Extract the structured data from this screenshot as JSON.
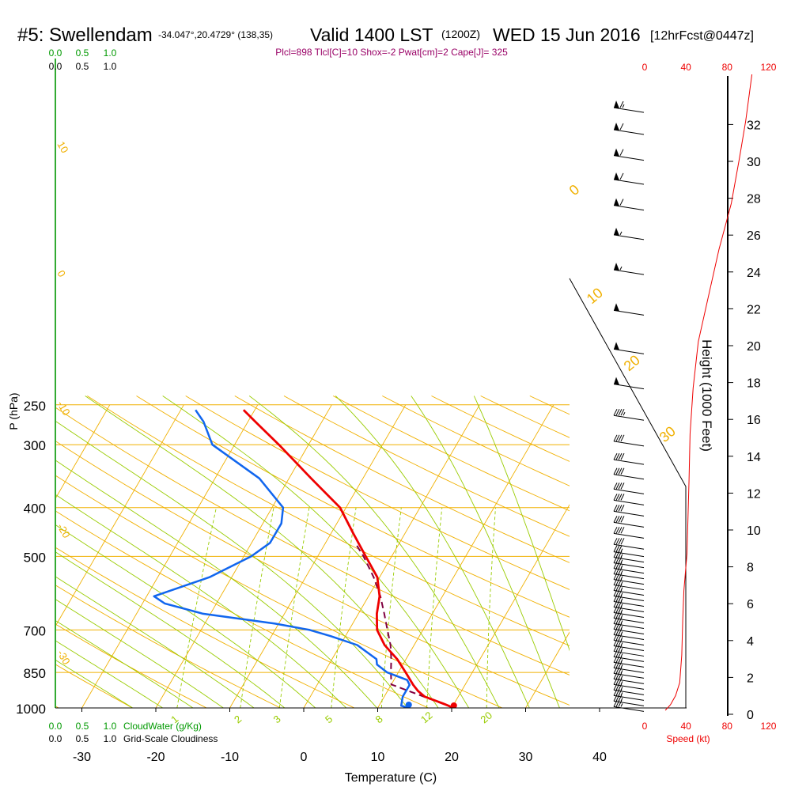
{
  "header": {
    "station": "#5: Swellendam",
    "coords": "-34.047°,20.4729° (138,35)",
    "valid": "Valid 1400 LST",
    "zulu": "(1200Z)",
    "date": "WED 15 Jun 2016",
    "fcst": "[12hrFcst@0447z]",
    "indices": "Plcl=898 Tlcl[C]=10 Shox=-2 Pwat[cm]=2 Cape[J]= 325"
  },
  "colors": {
    "isotherm": "#f0b000",
    "dry_adiabat": "#f0b000",
    "moist_adiabat": "#99cc00",
    "mixing_ratio": "#99cc00",
    "temperature": "#ee0000",
    "dewpoint": "#1166ee",
    "parcel": "#800040",
    "speed": "#ee0000",
    "cloud": "#009900",
    "indices": "#990066"
  },
  "chart_data": {
    "type": "skew-t log-p sounding",
    "xlabel": "Temperature (C)",
    "ylabel": "P (hPa)",
    "y2label": "Height (1000 Feet)",
    "x_ticks": [
      "-30",
      "-20",
      "-10",
      "0",
      "10",
      "20",
      "30",
      "40"
    ],
    "p_ticks": [
      "250",
      "300",
      "400",
      "500",
      "700",
      "850",
      "1000"
    ],
    "height_ticks": [
      "0",
      "2",
      "4",
      "6",
      "8",
      "10",
      "12",
      "14",
      "16",
      "18",
      "20",
      "22",
      "24",
      "26",
      "28",
      "30",
      "32"
    ],
    "isotherm_labels": [
      "10",
      "0",
      "-10",
      "-20",
      "-30",
      "0",
      "10",
      "20",
      "30"
    ],
    "mixing_ratio_labels": [
      "1",
      "2",
      "3",
      "5",
      "8",
      "12",
      "20"
    ],
    "temperature": [
      [
        1000,
        20.3
      ],
      [
        980,
        18.5
      ],
      [
        950,
        15.5
      ],
      [
        925,
        14.1
      ],
      [
        900,
        13.0
      ],
      [
        850,
        11.0
      ],
      [
        800,
        8.8
      ],
      [
        750,
        6.0
      ],
      [
        700,
        3.8
      ],
      [
        650,
        2.5
      ],
      [
        600,
        1.5
      ],
      [
        550,
        -0.3
      ],
      [
        500,
        -3.5
      ],
      [
        450,
        -7.0
      ],
      [
        400,
        -10.8
      ],
      [
        350,
        -17.0
      ],
      [
        300,
        -24.0
      ],
      [
        270,
        -29.0
      ],
      [
        256,
        -31.5
      ]
    ],
    "dewpoint": [
      [
        1000,
        14.2
      ],
      [
        990,
        13.0
      ],
      [
        950,
        12.5
      ],
      [
        900,
        12.5
      ],
      [
        880,
        11.8
      ],
      [
        850,
        8.5
      ],
      [
        820,
        6.5
      ],
      [
        800,
        6.0
      ],
      [
        750,
        2.3
      ],
      [
        720,
        -2.0
      ],
      [
        700,
        -5.3
      ],
      [
        680,
        -10.5
      ],
      [
        650,
        -21.0
      ],
      [
        620,
        -27.0
      ],
      [
        600,
        -29.0
      ],
      [
        550,
        -23.0
      ],
      [
        500,
        -19.0
      ],
      [
        470,
        -17.5
      ],
      [
        430,
        -17.5
      ],
      [
        400,
        -18.5
      ],
      [
        350,
        -24.0
      ],
      [
        300,
        -33.0
      ],
      [
        270,
        -36.0
      ],
      [
        256,
        -38.0
      ]
    ],
    "parcel": [
      [
        1000,
        20.3
      ],
      [
        898,
        10.0
      ],
      [
        850,
        9.0
      ],
      [
        800,
        8.0
      ],
      [
        750,
        6.8
      ],
      [
        700,
        5.2
      ],
      [
        650,
        3.5
      ],
      [
        600,
        1.6
      ],
      [
        550,
        -0.8
      ],
      [
        500,
        -3.8
      ],
      [
        470,
        -6.0
      ]
    ],
    "wind_speed_ticks": [
      "0",
      "40",
      "80",
      "120"
    ],
    "wind_speed_label": "Speed (kt)",
    "wind_speed_profile": [
      [
        0.0,
        20
      ],
      [
        0.3,
        25
      ],
      [
        0.8,
        30
      ],
      [
        1.5,
        34
      ],
      [
        3.0,
        36
      ],
      [
        5.0,
        37
      ],
      [
        6.5,
        38
      ],
      [
        8.5,
        41
      ],
      [
        10.5,
        42
      ],
      [
        12.5,
        43
      ],
      [
        15.0,
        44
      ],
      [
        17.5,
        47
      ],
      [
        20.0,
        52
      ],
      [
        22.5,
        62
      ],
      [
        25.0,
        72
      ],
      [
        27.5,
        84
      ],
      [
        30.0,
        92
      ],
      [
        32.0,
        98
      ],
      [
        34.5,
        104
      ]
    ],
    "wind_barbs_kt": [
      [
        0.2,
        35
      ],
      [
        0.5,
        35
      ],
      [
        0.8,
        35
      ],
      [
        1.1,
        35
      ],
      [
        1.4,
        35
      ],
      [
        1.7,
        35
      ],
      [
        2.0,
        35
      ],
      [
        2.3,
        35
      ],
      [
        2.6,
        35
      ],
      [
        2.9,
        35
      ],
      [
        3.2,
        35
      ],
      [
        3.5,
        35
      ],
      [
        3.8,
        35
      ],
      [
        4.1,
        35
      ],
      [
        4.4,
        35
      ],
      [
        4.7,
        35
      ],
      [
        5.0,
        35
      ],
      [
        5.3,
        35
      ],
      [
        5.6,
        35
      ],
      [
        5.9,
        35
      ],
      [
        6.2,
        35
      ],
      [
        6.5,
        35
      ],
      [
        6.8,
        35
      ],
      [
        7.1,
        35
      ],
      [
        7.4,
        35
      ],
      [
        7.7,
        35
      ],
      [
        8.0,
        35
      ],
      [
        8.3,
        35
      ],
      [
        8.6,
        35
      ],
      [
        9.0,
        40
      ],
      [
        9.6,
        40
      ],
      [
        10.2,
        40
      ],
      [
        10.8,
        40
      ],
      [
        11.4,
        40
      ],
      [
        12.0,
        40
      ],
      [
        12.8,
        40
      ],
      [
        13.6,
        40
      ],
      [
        14.6,
        40
      ],
      [
        16.0,
        45
      ],
      [
        17.7,
        50
      ],
      [
        19.6,
        50
      ],
      [
        21.7,
        50
      ],
      [
        23.9,
        55
      ],
      [
        25.8,
        55
      ],
      [
        27.4,
        60
      ],
      [
        28.8,
        60
      ],
      [
        30.1,
        60
      ],
      [
        31.5,
        60
      ],
      [
        32.7,
        65
      ]
    ],
    "cloud_ticks": [
      "0.0",
      "0.5",
      "1.0"
    ],
    "cloud_water_label": "CloudWater (g/Kg)",
    "cloudiness_label": "Grid-Scale Cloudiness",
    "grid": true
  }
}
